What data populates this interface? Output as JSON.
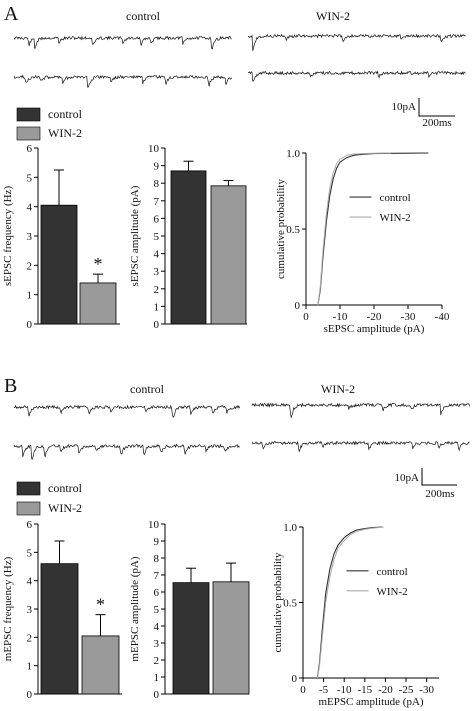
{
  "colors": {
    "control": "#333333",
    "win2": "#9a9a9a",
    "curve_control": "#333333",
    "curve_win2": "#aaaaaa",
    "axis": "#000000",
    "trace": "#111111"
  },
  "panels": [
    {
      "letter": "A",
      "trace_labels": {
        "control": "control",
        "win2": "WIN-2"
      },
      "scale_bar": {
        "amp_label": "10pA",
        "time_label": "200ms"
      },
      "legend": {
        "control": "control",
        "win2": "WIN-2"
      },
      "significance_mark": "*",
      "chart_data": [
        {
          "type": "bar",
          "ylabel": "sEPSC frequency (Hz)",
          "categories": [
            "control",
            "WIN-2"
          ],
          "values": [
            4.05,
            1.4
          ],
          "errors": [
            1.2,
            0.3
          ],
          "ylim": [
            0,
            6
          ],
          "yticks": [
            "0",
            "1",
            "2",
            "3",
            "4",
            "5",
            "6"
          ],
          "significant": [
            false,
            true
          ]
        },
        {
          "type": "bar",
          "ylabel": "sEPSC amplitude (pA)",
          "categories": [
            "control",
            "WIN-2"
          ],
          "values": [
            8.7,
            7.85
          ],
          "errors": [
            0.55,
            0.3
          ],
          "ylim": [
            0,
            10
          ],
          "yticks": [
            "0",
            "1",
            "2",
            "3",
            "4",
            "5",
            "6",
            "7",
            "8",
            "9",
            "10"
          ]
        },
        {
          "type": "line",
          "ylabel": "cumulative probability",
          "xlabel": "sEPSC amplitude (pA)",
          "xlim": [
            0,
            -40
          ],
          "ylim": [
            0,
            1
          ],
          "xticks": [
            0,
            -10,
            -20,
            -30,
            -40
          ],
          "xtick_labels": [
            "0",
            "-10",
            "-20",
            "-30",
            "-40"
          ],
          "yticks": [
            0,
            0.5,
            1.0
          ],
          "ytick_labels": [
            "0",
            "0.5",
            "1.0"
          ],
          "legend": [
            "control",
            "WIN-2"
          ],
          "legend_position": "right",
          "series": [
            {
              "name": "control",
              "x": [
                -3.5,
                -4.2,
                -5,
                -6,
                -7,
                -8,
                -9,
                -10,
                -12,
                -14,
                -17,
                -20,
                -25,
                -30,
                -36
              ],
              "y": [
                0,
                0.1,
                0.32,
                0.55,
                0.72,
                0.83,
                0.9,
                0.94,
                0.97,
                0.985,
                0.992,
                0.996,
                0.998,
                0.999,
                1.0
              ]
            },
            {
              "name": "WIN-2",
              "x": [
                -3.5,
                -4.2,
                -5,
                -6,
                -7,
                -8,
                -9,
                -10,
                -12,
                -14,
                -17,
                -20,
                -25
              ],
              "y": [
                0,
                0.12,
                0.36,
                0.6,
                0.77,
                0.87,
                0.93,
                0.96,
                0.985,
                0.993,
                0.997,
                0.999,
                1.0
              ]
            }
          ]
        }
      ]
    },
    {
      "letter": "B",
      "trace_labels": {
        "control": "control",
        "win2": "WIN-2"
      },
      "scale_bar": {
        "amp_label": "10pA",
        "time_label": "200ms"
      },
      "legend": {
        "control": "control",
        "win2": "WIN-2"
      },
      "significance_mark": "*",
      "chart_data": [
        {
          "type": "bar",
          "ylabel": "mEPSC frequency (Hz)",
          "categories": [
            "control",
            "WIN-2"
          ],
          "values": [
            4.6,
            2.05
          ],
          "errors": [
            0.8,
            0.75
          ],
          "ylim": [
            0,
            6
          ],
          "yticks": [
            "0",
            "1",
            "2",
            "3",
            "4",
            "5",
            "6"
          ],
          "significant": [
            false,
            true
          ]
        },
        {
          "type": "bar",
          "ylabel": "mEPSC amplitude (pA)",
          "categories": [
            "control",
            "WIN-2"
          ],
          "values": [
            6.55,
            6.6
          ],
          "errors": [
            0.85,
            1.1
          ],
          "ylim": [
            0,
            10
          ],
          "yticks": [
            "0",
            "1",
            "2",
            "3",
            "4",
            "5",
            "6",
            "7",
            "8",
            "9",
            "10"
          ]
        },
        {
          "type": "line",
          "ylabel": "cumulative probability",
          "xlabel": "mEPSC amplitude (pA)",
          "xlim": [
            0,
            -33
          ],
          "ylim": [
            0,
            1
          ],
          "xticks": [
            0,
            -5,
            -10,
            -15,
            -20,
            -25,
            -30
          ],
          "xtick_labels": [
            "0",
            "-5",
            "-10",
            "-15",
            "-20",
            "-25",
            "-30"
          ],
          "yticks": [
            0,
            0.5,
            1.0
          ],
          "ytick_labels": [
            "0",
            "0.5",
            "1.0"
          ],
          "legend": [
            "control",
            "WIN-2"
          ],
          "legend_position": "right",
          "series": [
            {
              "name": "control",
              "x": [
                -3.5,
                -4,
                -4.7,
                -5.5,
                -6.5,
                -7.5,
                -8.5,
                -10,
                -11.5,
                -13,
                -15,
                -17,
                -19.5
              ],
              "y": [
                0,
                0.1,
                0.33,
                0.56,
                0.72,
                0.82,
                0.88,
                0.93,
                0.96,
                0.98,
                0.99,
                0.996,
                1.0
              ]
            },
            {
              "name": "WIN-2",
              "x": [
                -3.5,
                -4,
                -4.7,
                -5.5,
                -6.5,
                -7.5,
                -8.5,
                -10,
                -11.5,
                -13,
                -15,
                -17,
                -19.5
              ],
              "y": [
                0,
                0.08,
                0.28,
                0.5,
                0.67,
                0.78,
                0.86,
                0.91,
                0.95,
                0.97,
                0.985,
                0.993,
                1.0
              ]
            }
          ]
        }
      ]
    }
  ]
}
